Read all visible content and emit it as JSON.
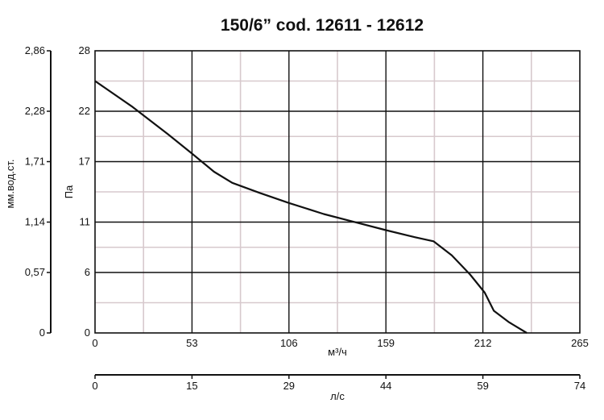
{
  "chart_data": {
    "type": "line",
    "title": "150/6” cod. 12611 - 12612",
    "x_axis_primary": {
      "label": "м³/ч",
      "ticks": [
        0,
        53,
        106,
        159,
        212,
        265
      ],
      "range": [
        0,
        265
      ]
    },
    "x_axis_secondary": {
      "label": "л/с",
      "ticks": [
        "0",
        "15",
        "29",
        "44",
        "59",
        "74"
      ]
    },
    "y_axis_primary": {
      "label": "Па",
      "ticks": [
        0,
        6,
        11,
        17,
        22,
        28
      ],
      "range": [
        0,
        28
      ]
    },
    "y_axis_secondary": {
      "label": "мм.вод.ст.",
      "ticks": [
        "0",
        "0,57",
        "1,14",
        "1,71",
        "2,28",
        "2,86"
      ]
    },
    "grid": true,
    "series": [
      {
        "x": [
          0,
          20,
          40,
          53,
          65,
          75,
          90,
          106,
          125,
          140,
          159,
          175,
          185,
          195,
          205,
          213,
          218,
          226,
          236
        ],
        "y": [
          25.0,
          22.5,
          19.7,
          17.8,
          16.0,
          14.9,
          13.9,
          12.9,
          11.8,
          11.1,
          10.2,
          9.5,
          9.1,
          7.7,
          5.8,
          4.0,
          2.2,
          1.1,
          0
        ]
      }
    ]
  }
}
